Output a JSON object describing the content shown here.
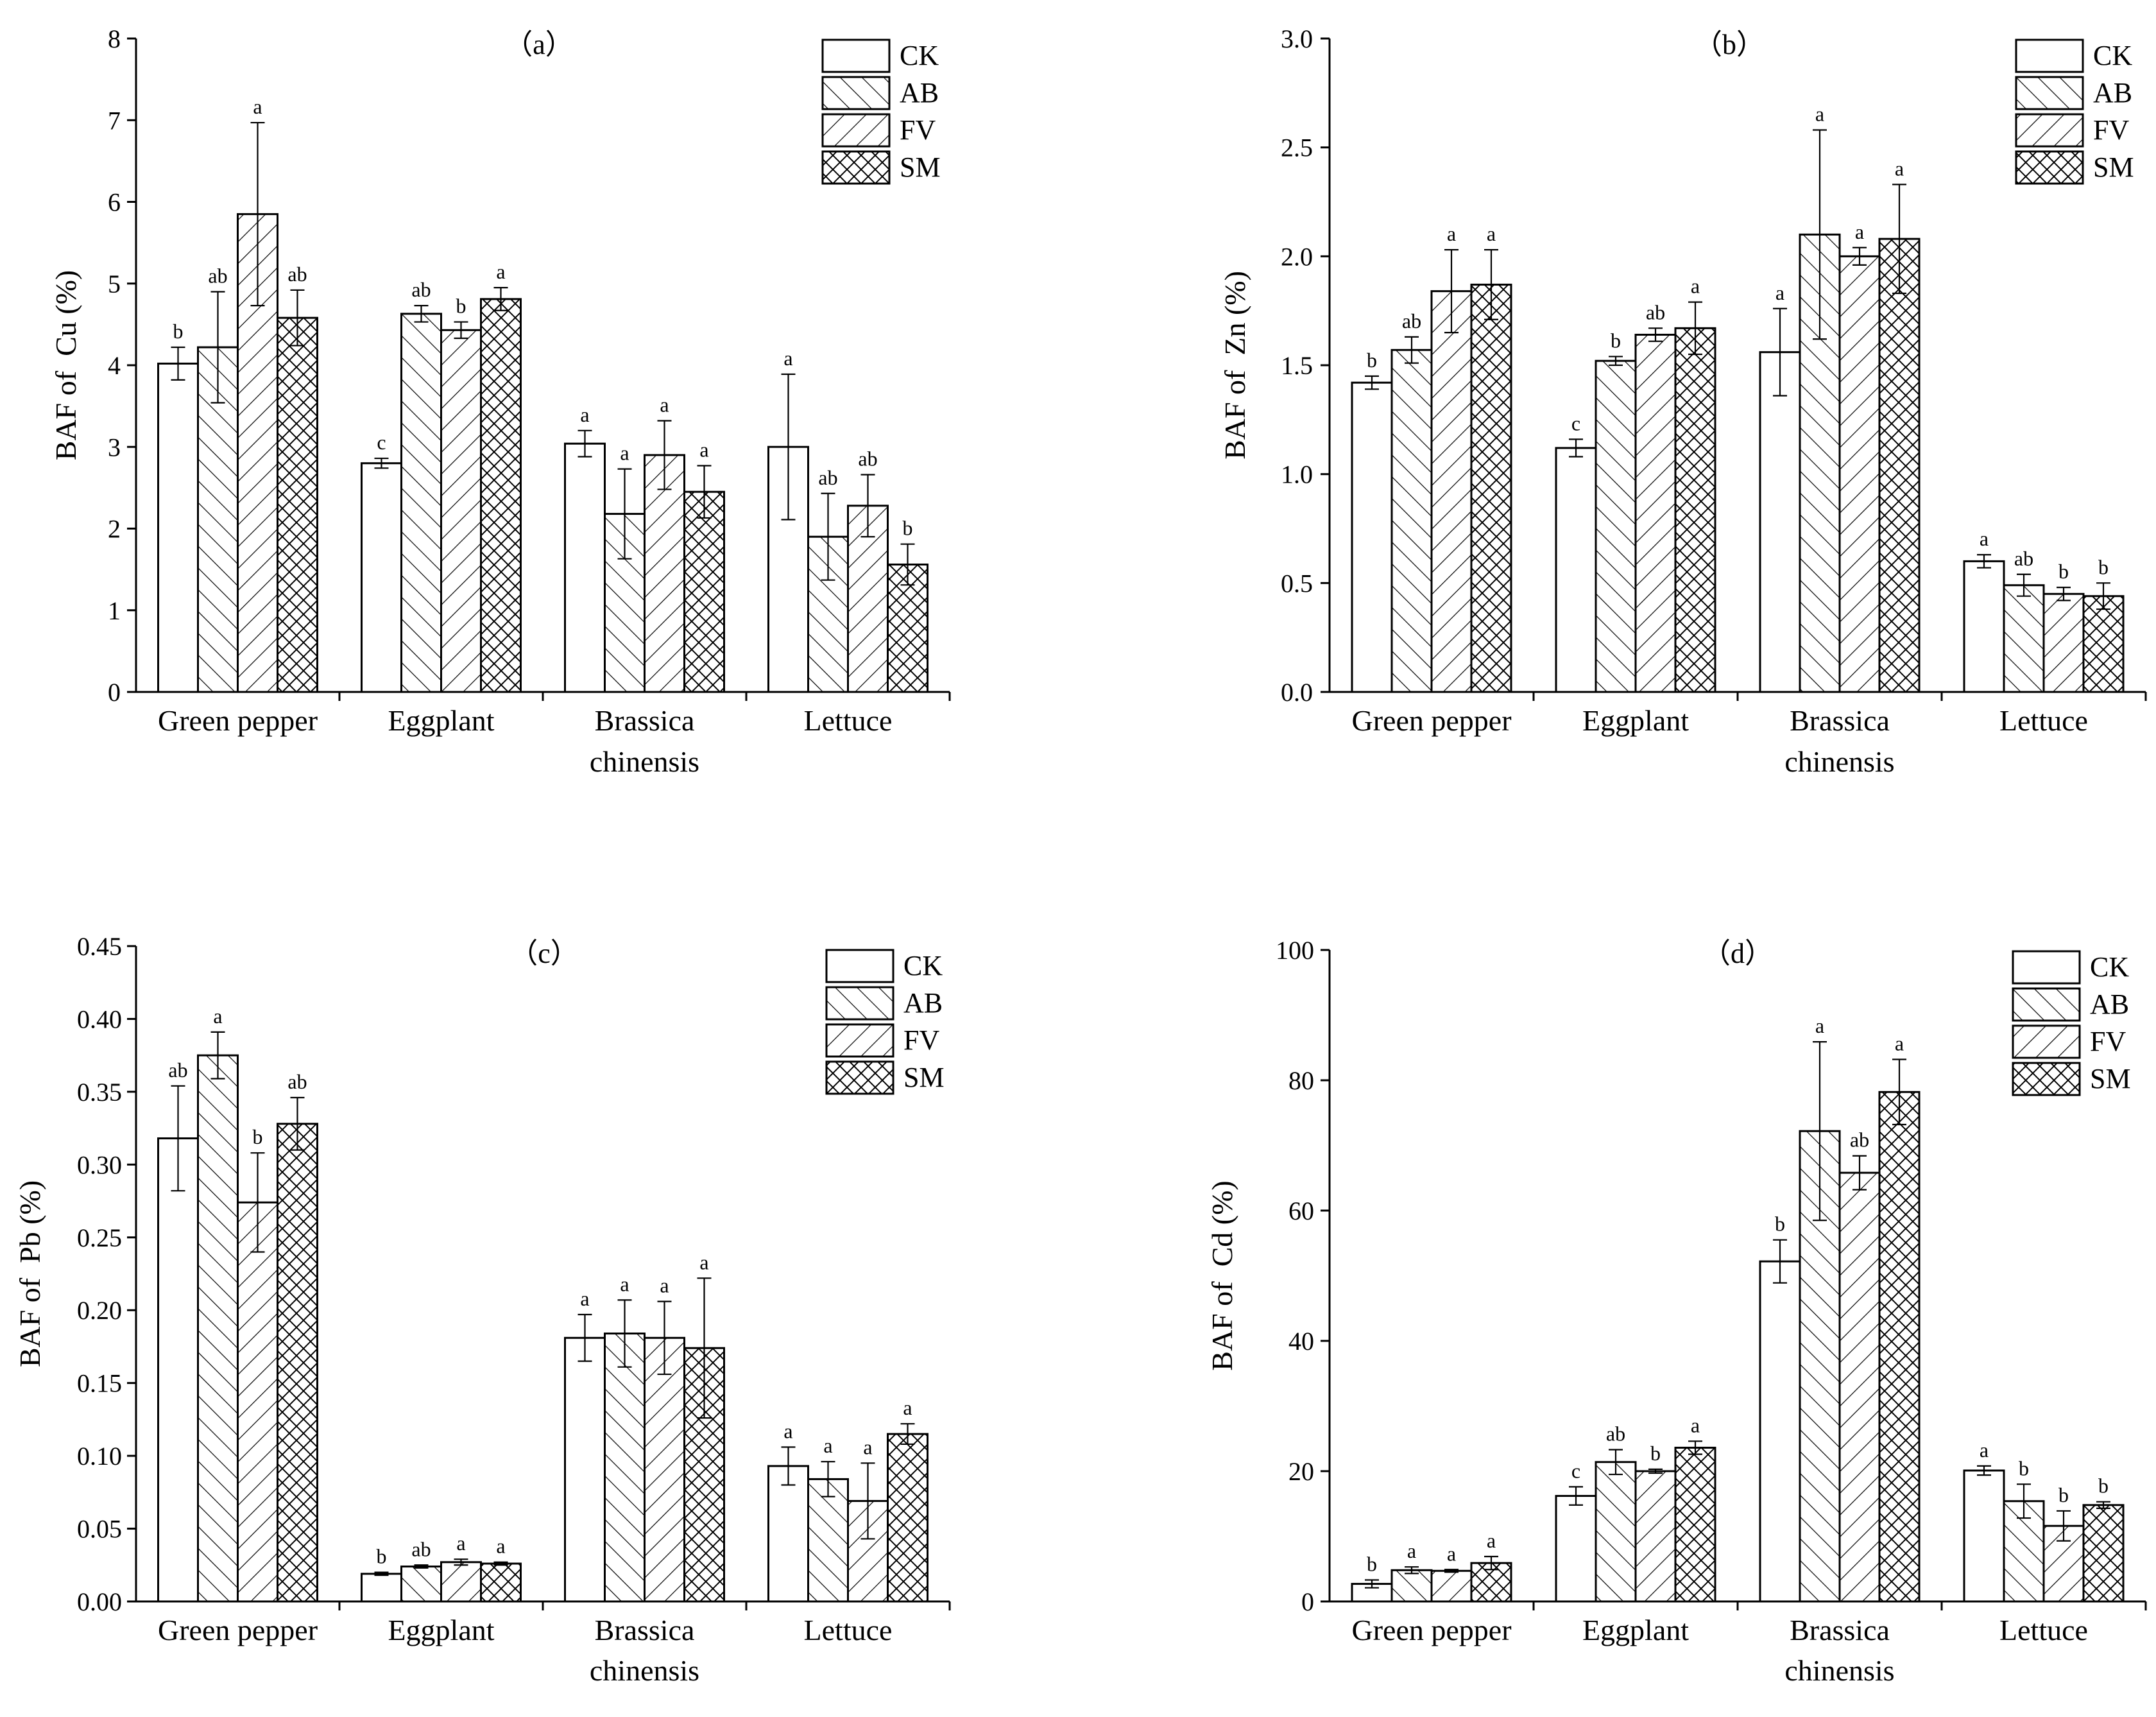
{
  "treatments": [
    "CK",
    "AB",
    "FV",
    "SM"
  ],
  "categories": [
    "Green pepper",
    "Eggplant",
    "Brassica chinensis",
    "Lettuce"
  ],
  "chart_data": [
    {
      "type": "bar",
      "panel": "(a)",
      "title": "（a）",
      "ylabel": "BAF of  Cu (%)",
      "xlabel": "",
      "ylim": [
        0,
        8
      ],
      "yticks": [
        "0",
        "1",
        "2",
        "3",
        "4",
        "5",
        "6",
        "7",
        "8"
      ],
      "categories": [
        "Green pepper",
        "Eggplant",
        "Brassica chinensis",
        "Lettuce"
      ],
      "legend": [
        "CK",
        "AB",
        "FV",
        "SM"
      ],
      "legend_position": "top-right",
      "series": [
        {
          "name": "CK",
          "values": [
            4.02,
            2.8,
            3.04,
            3.0
          ],
          "errors": [
            0.2,
            0.06,
            0.16,
            0.89
          ],
          "letters": [
            "b",
            "c",
            "a",
            "a"
          ]
        },
        {
          "name": "AB",
          "values": [
            4.22,
            4.63,
            2.18,
            1.9
          ],
          "errors": [
            0.68,
            0.1,
            0.55,
            0.53
          ],
          "letters": [
            "ab",
            "ab",
            "a",
            "ab"
          ]
        },
        {
          "name": "FV",
          "values": [
            5.85,
            4.43,
            2.9,
            2.28
          ],
          "errors": [
            1.12,
            0.1,
            0.42,
            0.38
          ],
          "letters": [
            "a",
            "b",
            "a",
            "ab"
          ]
        },
        {
          "name": "SM",
          "values": [
            4.58,
            4.81,
            2.45,
            1.56
          ],
          "errors": [
            0.34,
            0.14,
            0.32,
            0.25
          ],
          "letters": [
            "ab",
            "a",
            "a",
            "b"
          ]
        }
      ]
    },
    {
      "type": "bar",
      "panel": "(b)",
      "title": "（b）",
      "ylabel": "BAF of  Zn (%)",
      "xlabel": "",
      "ylim": [
        0,
        3.0
      ],
      "yticks": [
        "0.0",
        "0.5",
        "1.0",
        "1.5",
        "2.0",
        "2.5",
        "3.0"
      ],
      "categories": [
        "Green pepper",
        "Eggplant",
        "Brassica chinensis",
        "Lettuce"
      ],
      "legend": [
        "CK",
        "AB",
        "FV",
        "SM"
      ],
      "legend_position": "top-right",
      "series": [
        {
          "name": "CK",
          "values": [
            1.42,
            1.12,
            1.56,
            0.6
          ],
          "errors": [
            0.03,
            0.04,
            0.2,
            0.03
          ],
          "letters": [
            "b",
            "c",
            "a",
            "a"
          ]
        },
        {
          "name": "AB",
          "values": [
            1.57,
            1.52,
            2.1,
            0.49
          ],
          "errors": [
            0.06,
            0.02,
            0.48,
            0.05
          ],
          "letters": [
            "ab",
            "b",
            "a",
            "ab"
          ]
        },
        {
          "name": "FV",
          "values": [
            1.84,
            1.64,
            2.0,
            0.45
          ],
          "errors": [
            0.19,
            0.03,
            0.04,
            0.03
          ],
          "letters": [
            "a",
            "ab",
            "a",
            "b"
          ]
        },
        {
          "name": "SM",
          "values": [
            1.87,
            1.67,
            2.08,
            0.44
          ],
          "errors": [
            0.16,
            0.12,
            0.25,
            0.06
          ],
          "letters": [
            "a",
            "a",
            "a",
            "b"
          ]
        }
      ]
    },
    {
      "type": "bar",
      "panel": "(c)",
      "title": "（c）",
      "ylabel": "BAF of  Pb (%)",
      "xlabel": "",
      "ylim": [
        0,
        0.45
      ],
      "yticks": [
        "0.00",
        "0.05",
        "0.10",
        "0.15",
        "0.20",
        "0.25",
        "0.30",
        "0.35",
        "0.40",
        "0.45"
      ],
      "categories": [
        "Green pepper",
        "Eggplant",
        "Brassica chinensis",
        "Lettuce"
      ],
      "legend": [
        "CK",
        "AB",
        "FV",
        "SM"
      ],
      "legend_position": "top-right",
      "series": [
        {
          "name": "CK",
          "values": [
            0.318,
            0.019,
            0.181,
            0.093
          ],
          "errors": [
            0.036,
            0.001,
            0.016,
            0.013
          ],
          "letters": [
            "ab",
            "b",
            "a",
            "a"
          ]
        },
        {
          "name": "AB",
          "values": [
            0.375,
            0.024,
            0.184,
            0.084
          ],
          "errors": [
            0.016,
            0.001,
            0.023,
            0.012
          ],
          "letters": [
            "a",
            "ab",
            "a",
            "a"
          ]
        },
        {
          "name": "FV",
          "values": [
            0.274,
            0.027,
            0.181,
            0.069
          ],
          "errors": [
            0.034,
            0.002,
            0.025,
            0.026
          ],
          "letters": [
            "b",
            "a",
            "a",
            "a"
          ]
        },
        {
          "name": "SM",
          "values": [
            0.328,
            0.026,
            0.174,
            0.115
          ],
          "errors": [
            0.018,
            0.001,
            0.048,
            0.007
          ],
          "letters": [
            "ab",
            "a",
            "a",
            "a"
          ]
        }
      ]
    },
    {
      "type": "bar",
      "panel": "(d)",
      "title": "（d）",
      "ylabel": "BAF of  Cd (%)",
      "xlabel": "",
      "ylim": [
        0,
        100
      ],
      "yticks": [
        "0",
        "20",
        "40",
        "60",
        "80",
        "100"
      ],
      "categories": [
        "Green pepper",
        "Eggplant",
        "Brassica chinensis",
        "Lettuce"
      ],
      "legend": [
        "CK",
        "AB",
        "FV",
        "SM"
      ],
      "legend_position": "top-right",
      "series": [
        {
          "name": "CK",
          "values": [
            2.7,
            16.2,
            52.2,
            20.1
          ],
          "errors": [
            0.6,
            1.4,
            3.3,
            0.7
          ],
          "letters": [
            "b",
            "c",
            "b",
            "a"
          ]
        },
        {
          "name": "AB",
          "values": [
            4.8,
            21.4,
            72.2,
            15.4
          ],
          "errors": [
            0.5,
            1.9,
            13.7,
            2.6
          ],
          "letters": [
            "a",
            "ab",
            "a",
            "b"
          ]
        },
        {
          "name": "FV",
          "values": [
            4.7,
            20.0,
            65.8,
            11.6
          ],
          "errors": [
            0.2,
            0.3,
            2.6,
            2.3
          ],
          "letters": [
            "a",
            "b",
            "ab",
            "b"
          ]
        },
        {
          "name": "SM",
          "values": [
            5.9,
            23.6,
            78.2,
            14.8
          ],
          "errors": [
            1.0,
            1.0,
            5.0,
            0.5
          ],
          "letters": [
            "a",
            "a",
            "a",
            "b"
          ]
        }
      ]
    }
  ]
}
